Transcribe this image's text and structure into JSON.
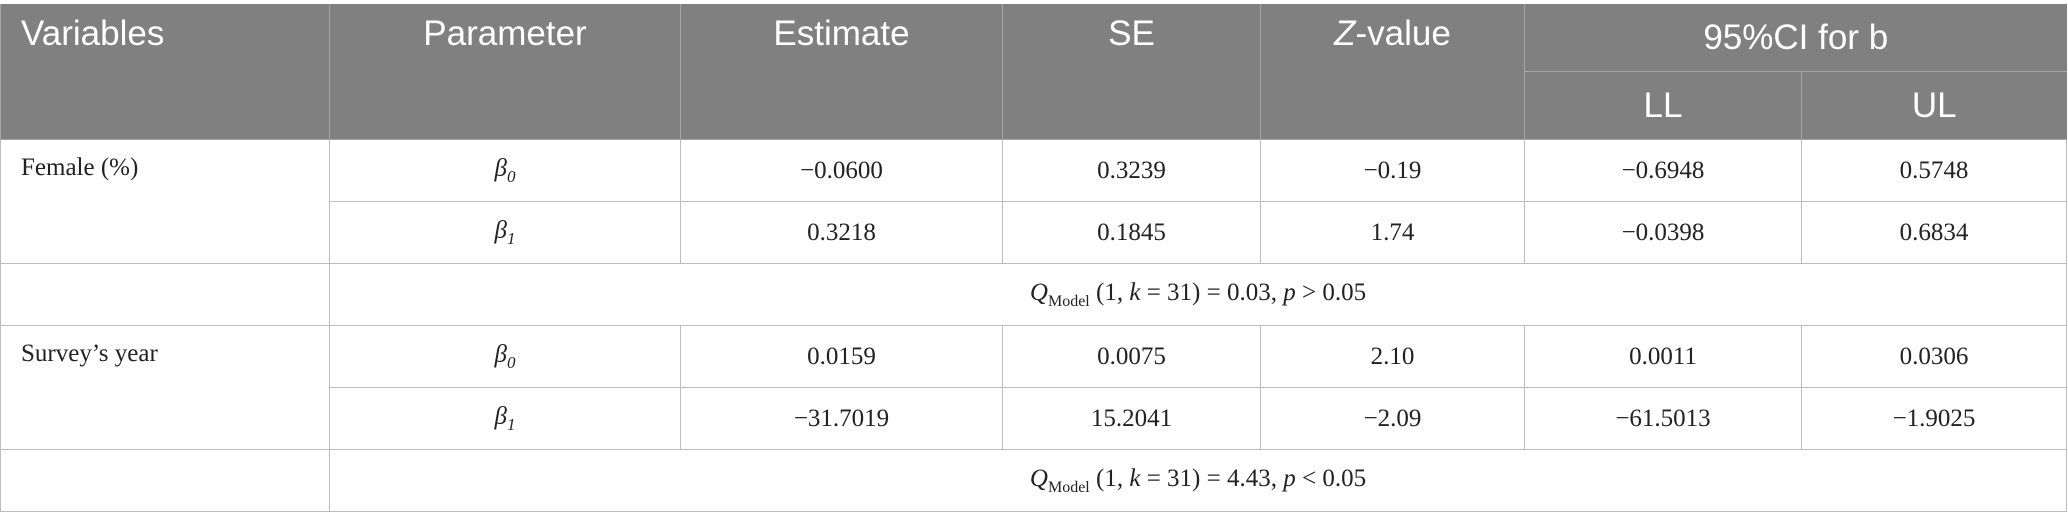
{
  "headers": {
    "variables": "Variables",
    "parameter": "Parameter",
    "estimate": "Estimate",
    "se": "SE",
    "z_italic": "Z",
    "z_rest": "-value",
    "ci": "95%CI for b",
    "ll": "LL",
    "ul": "UL"
  },
  "groups": [
    {
      "variable": "Female (%)",
      "rows": [
        {
          "param_symbol": "β",
          "param_sub": "0",
          "estimate": "−0.0600",
          "se": "0.3239",
          "z": "−0.19",
          "ll": "−0.6948",
          "ul": "0.5748"
        },
        {
          "param_symbol": "β",
          "param_sub": "1",
          "estimate": "0.3218",
          "se": "0.1845",
          "z": "1.74",
          "ll": "−0.0398",
          "ul": "0.6834"
        }
      ],
      "q": {
        "symbol": "Q",
        "sub": "Model",
        "args": "(1,",
        "k": "k",
        "eq": "= 31) = 0.03,",
        "p": "p",
        "cmp": "> 0.05"
      }
    },
    {
      "variable": "Survey’s year",
      "rows": [
        {
          "param_symbol": "β",
          "param_sub": "0",
          "estimate": "0.0159",
          "se": "0.0075",
          "z": "2.10",
          "ll": "0.0011",
          "ul": "0.0306"
        },
        {
          "param_symbol": "β",
          "param_sub": "1",
          "estimate": "−31.7019",
          "se": "15.2041",
          "z": "−2.09",
          "ll": "−61.5013",
          "ul": "−1.9025"
        }
      ],
      "q": {
        "symbol": "Q",
        "sub": "Model",
        "args": "(1,",
        "k": "k",
        "eq": "= 31) = 4.43,",
        "p": "p",
        "cmp": "< 0.05"
      }
    }
  ]
}
